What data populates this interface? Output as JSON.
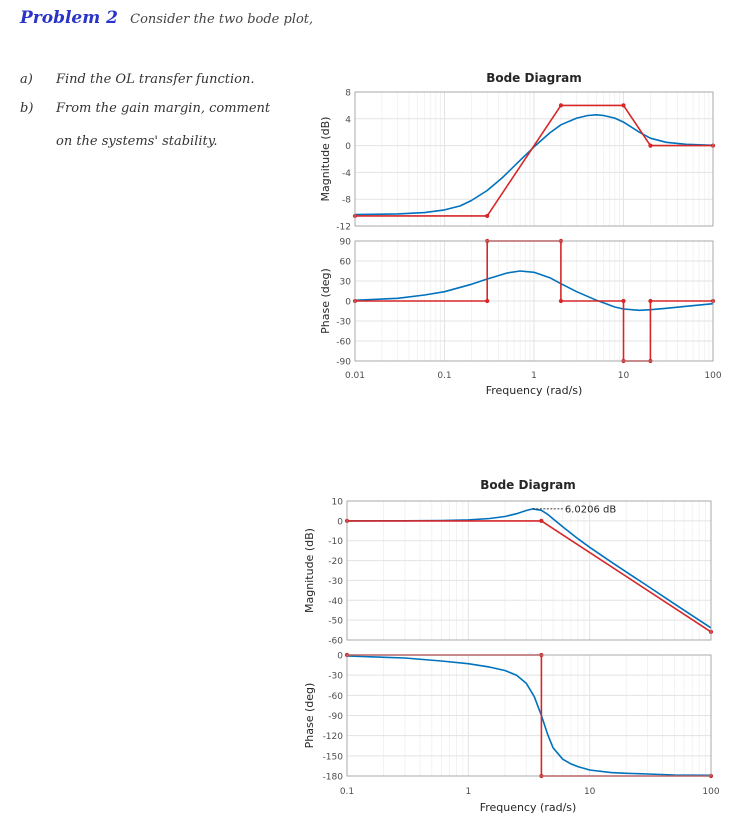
{
  "problem": {
    "heading": "Problem 2",
    "intro": "Consider the two bode plot,",
    "items": [
      {
        "label": "a)",
        "text": "Find the OL transfer function."
      },
      {
        "label": "b)",
        "text": "From the gain margin, comment",
        "continuation": "on the systems' stability."
      }
    ]
  },
  "colors": {
    "exact": "#0072BD",
    "asymptote": "#D62728",
    "axis": "#262626",
    "grid": "#e3e3e3",
    "tick_label": "#4d4d4d"
  },
  "chart_data": [
    {
      "type": "line",
      "title": "Bode Diagram",
      "xlabel": "Frequency  (rad/s)",
      "x_scale": "log",
      "xlim": [
        0.01,
        100
      ],
      "x_ticks": [
        0.01,
        0.1,
        1,
        10,
        100
      ],
      "x_tick_labels": [
        "0.01",
        "0.1",
        "1",
        "10",
        "100"
      ],
      "grid": true,
      "magnitude": {
        "ylabel": "Magnitude (dB)",
        "ylim": [
          -12,
          8
        ],
        "y_ticks": [
          -12,
          -8,
          -4,
          0,
          4,
          8
        ],
        "series": [
          {
            "role": "exact",
            "x": [
              0.01,
              0.03,
              0.06,
              0.1,
              0.15,
              0.2,
              0.3,
              0.45,
              0.7,
              1,
              1.5,
              2,
              3,
              4,
              5,
              6,
              8,
              10,
              15,
              20,
              30,
              50,
              100
            ],
            "y": [
              -10.3,
              -10.2,
              -10.0,
              -9.6,
              -9.0,
              -8.2,
              -6.7,
              -4.7,
              -2.2,
              -0.2,
              1.9,
              3.1,
              4.1,
              4.5,
              4.6,
              4.5,
              4.1,
              3.5,
              2.0,
              1.1,
              0.5,
              0.2,
              0.05
            ]
          },
          {
            "role": "asymptote",
            "x": [
              0.01,
              0.3,
              2,
              10,
              20,
              100
            ],
            "y": [
              -10.5,
              -10.5,
              6.0,
              6.0,
              0,
              0
            ]
          }
        ]
      },
      "phase": {
        "ylabel": "Phase (deg)",
        "ylim": [
          -90,
          90
        ],
        "y_ticks": [
          -90,
          -60,
          -30,
          0,
          30,
          60,
          90
        ],
        "series": [
          {
            "role": "exact",
            "x": [
              0.01,
              0.03,
              0.06,
              0.1,
              0.2,
              0.3,
              0.5,
              0.7,
              1,
              1.5,
              2,
              3,
              5,
              8,
              10,
              15,
              20,
              30,
              50,
              100
            ],
            "y": [
              1,
              4,
              9,
              14,
              25,
              33,
              42,
              45,
              43,
              35,
              26,
              14,
              1,
              -9,
              -12,
              -14,
              -13,
              -11,
              -8,
              -4
            ]
          },
          {
            "role": "asymptote",
            "x": [
              0.01,
              0.3,
              0.3,
              2,
              2,
              10,
              10,
              20,
              20,
              100
            ],
            "y": [
              0,
              0,
              90,
              90,
              0,
              0,
              -90,
              -90,
              0,
              0
            ]
          }
        ]
      }
    },
    {
      "type": "line",
      "title": "Bode Diagram",
      "xlabel": "Frequency  (rad/s)",
      "x_scale": "log",
      "xlim": [
        0.1,
        100
      ],
      "x_ticks": [
        0.1,
        1,
        10,
        100
      ],
      "x_tick_labels": [
        "0.1",
        "1",
        "10",
        "100"
      ],
      "grid": true,
      "annotation": {
        "text": "6.0206 dB",
        "x": 3.4,
        "y": 6.02
      },
      "magnitude": {
        "ylabel": "Magnitude (dB)",
        "ylim": [
          -60,
          10
        ],
        "y_ticks": [
          -60,
          -50,
          -40,
          -30,
          -20,
          -10,
          0,
          10
        ],
        "series": [
          {
            "role": "exact",
            "x": [
              0.1,
              0.3,
              0.6,
              1,
              1.5,
              2,
              2.5,
              3,
              3.4,
              4,
              4.5,
              5,
              6,
              8,
              10,
              15,
              20,
              30,
              50,
              100
            ],
            "y": [
              0,
              0.05,
              0.2,
              0.5,
              1.2,
              2.2,
              3.6,
              5.2,
              6.02,
              5.3,
              3.3,
              1.0,
              -3.0,
              -9.0,
              -13.3,
              -20.6,
              -25.7,
              -32.8,
              -41.8,
              -53.9
            ]
          },
          {
            "role": "asymptote",
            "x": [
              0.1,
              4,
              100
            ],
            "y": [
              0,
              0,
              -55.9
            ]
          }
        ]
      },
      "phase": {
        "ylabel": "Phase (deg)",
        "ylim": [
          -180,
          0
        ],
        "y_ticks": [
          -180,
          -150,
          -120,
          -90,
          -60,
          -30,
          0
        ],
        "series": [
          {
            "role": "exact",
            "x": [
              0.1,
              0.3,
              0.6,
              1,
              1.5,
              2,
              2.5,
              3,
              3.5,
              4,
              4.5,
              5,
              6,
              7,
              8,
              10,
              15,
              20,
              30,
              50,
              100
            ],
            "y": [
              -1.5,
              -4.5,
              -9,
              -13,
              -18,
              -23,
              -30,
              -42,
              -62,
              -90,
              -118,
              -138,
              -155,
              -162,
              -166,
              -171,
              -175,
              -176,
              -177,
              -178.5,
              -179
            ]
          },
          {
            "role": "asymptote",
            "x": [
              0.1,
              4,
              4,
              100
            ],
            "y": [
              0,
              0,
              -180,
              -180
            ]
          }
        ]
      }
    }
  ]
}
